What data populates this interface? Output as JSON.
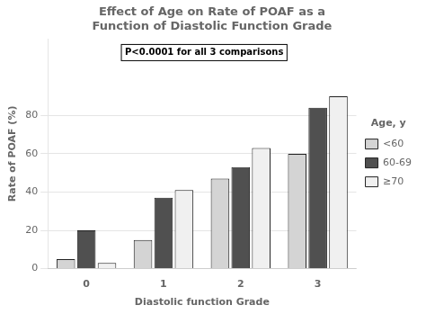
{
  "chart_data": {
    "type": "bar",
    "title": "Effect of Age on Rate of POAF as a\nFunction of Diastolic Function Grade",
    "xlabel": "Diastolic function Grade",
    "ylabel": "Rate of POAF (%)",
    "annotation": "P<0.0001 for all 3 comparisons",
    "legend_title": "Age, y",
    "categories": [
      "0",
      "1",
      "2",
      "3"
    ],
    "series": [
      {
        "name": "<60",
        "color": "#d4d4d4",
        "values": [
          5,
          15,
          47,
          60
        ]
      },
      {
        "name": "60-69",
        "color": "#505050",
        "values": [
          20,
          37,
          53,
          84
        ]
      },
      {
        "name": "≥70",
        "color": "#f0f0f0",
        "values": [
          3,
          41,
          63,
          90
        ]
      }
    ],
    "ylim": [
      0,
      120
    ],
    "yticks": [
      0,
      20,
      40,
      60,
      80
    ],
    "grid": true,
    "legend": "right"
  }
}
